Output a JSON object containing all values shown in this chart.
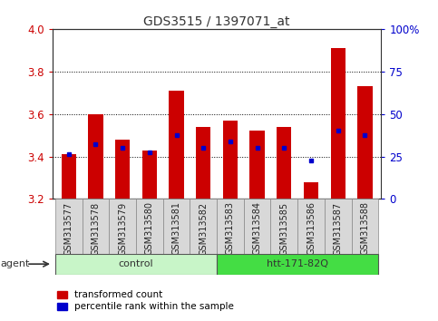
{
  "title": "GDS3515 / 1397071_at",
  "categories": [
    "GSM313577",
    "GSM313578",
    "GSM313579",
    "GSM313580",
    "GSM313581",
    "GSM313582",
    "GSM313583",
    "GSM313584",
    "GSM313585",
    "GSM313586",
    "GSM313587",
    "GSM313588"
  ],
  "red_values": [
    3.41,
    3.6,
    3.48,
    3.43,
    3.71,
    3.54,
    3.57,
    3.52,
    3.54,
    3.28,
    3.91,
    3.73
  ],
  "blue_values": [
    3.41,
    3.46,
    3.44,
    3.42,
    3.5,
    3.44,
    3.47,
    3.44,
    3.44,
    3.38,
    3.52,
    3.5
  ],
  "y_min": 3.2,
  "y_max": 4.0,
  "y_ticks_red": [
    3.2,
    3.4,
    3.6,
    3.8,
    4.0
  ],
  "y_ticks_blue": [
    0,
    25,
    50,
    75,
    100
  ],
  "groups": [
    {
      "label": "control",
      "start": 0,
      "end": 5,
      "color": "#c8f5c8"
    },
    {
      "label": "htt-171-82Q",
      "start": 6,
      "end": 11,
      "color": "#44dd44"
    }
  ],
  "group_label": "agent",
  "legend_items": [
    {
      "label": "transformed count",
      "color": "#cc0000"
    },
    {
      "label": "percentile rank within the sample",
      "color": "#0000cc"
    }
  ],
  "bar_color": "#cc0000",
  "dot_color": "#0000cc",
  "background_color": "#ffffff",
  "plot_bg_color": "#ffffff",
  "grid_color": "#000000",
  "axis_label_color_left": "#cc0000",
  "axis_label_color_right": "#0000cc",
  "xtick_bg": "#d8d8d8"
}
